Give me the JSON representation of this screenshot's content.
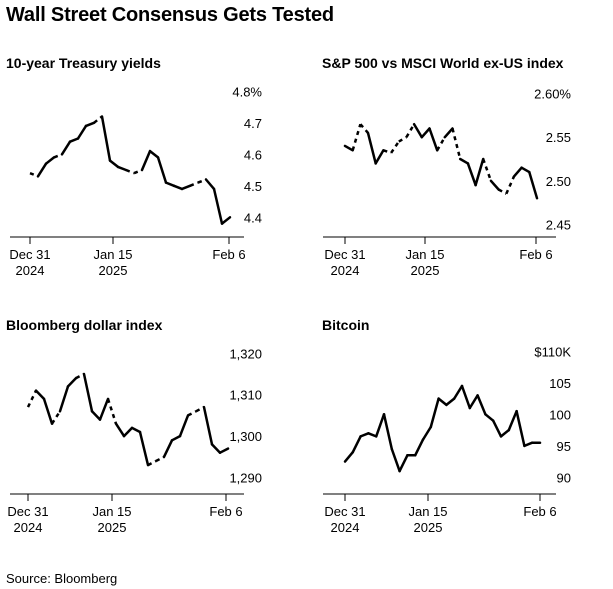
{
  "title": "Wall Street Consensus Gets Tested",
  "source": "Source: Bloomberg",
  "chart_data": [
    {
      "type": "line",
      "title": "10-year Treasury yields",
      "x_tick_labels": [
        [
          "Dec 31",
          "2024"
        ],
        [
          "Jan 15",
          "2025"
        ],
        [
          "Feb 6"
        ]
      ],
      "x_tick_index": [
        0,
        10,
        25
      ],
      "ylim": [
        4.35,
        4.82
      ],
      "y_ticks": [
        4.8,
        4.7,
        4.6,
        4.5,
        4.4
      ],
      "y_tick_labels": [
        "4.8%",
        "4.7",
        "4.6",
        "4.5",
        "4.4"
      ],
      "values": [
        4.54,
        4.53,
        4.57,
        4.59,
        4.6,
        4.64,
        4.65,
        4.69,
        4.7,
        4.72,
        4.58,
        4.56,
        4.55,
        4.54,
        4.55,
        4.61,
        4.59,
        4.51,
        4.5,
        4.49,
        4.5,
        4.51,
        4.52,
        4.49,
        4.38,
        4.4
      ],
      "gap_segments": [
        [
          0,
          1
        ],
        [
          3,
          4
        ],
        [
          8,
          9
        ],
        [
          12,
          13
        ],
        [
          13,
          14
        ],
        [
          20,
          21
        ],
        [
          21,
          22
        ]
      ]
    },
    {
      "type": "line",
      "title": "S&P 500 vs MSCI World ex-US index",
      "x_tick_labels": [
        [
          "Dec 31",
          "2024"
        ],
        [
          "Jan 15",
          "2025"
        ],
        [
          "Feb 6"
        ]
      ],
      "x_tick_index": [
        0,
        10,
        25
      ],
      "ylim": [
        2.44,
        2.61
      ],
      "y_ticks": [
        2.6,
        2.55,
        2.5,
        2.45
      ],
      "y_tick_labels": [
        "2.60%",
        "2.55",
        "2.50",
        "2.45"
      ],
      "values": [
        2.54,
        2.535,
        2.565,
        2.555,
        2.52,
        2.535,
        2.532,
        2.545,
        2.55,
        2.565,
        2.55,
        2.56,
        2.535,
        2.55,
        2.56,
        2.525,
        2.52,
        2.495,
        2.525,
        2.5,
        2.49,
        2.485,
        2.505,
        2.515,
        2.51,
        2.48
      ],
      "gap_segments": [
        [
          1,
          2
        ],
        [
          2,
          3
        ],
        [
          5,
          6
        ],
        [
          6,
          7
        ],
        [
          7,
          8
        ],
        [
          8,
          9
        ],
        [
          12,
          13
        ],
        [
          14,
          15
        ],
        [
          18,
          19
        ],
        [
          20,
          21
        ],
        [
          21,
          22
        ]
      ]
    },
    {
      "type": "line",
      "title": "Bloomberg dollar index",
      "x_tick_labels": [
        [
          "Dec 31",
          "2024"
        ],
        [
          "Jan 15",
          "2025"
        ],
        [
          "Feb 6"
        ]
      ],
      "x_tick_index": [
        0,
        10,
        25
      ],
      "ylim": [
        1287,
        1322
      ],
      "y_ticks": [
        1320,
        1310,
        1300,
        1290
      ],
      "y_tick_labels": [
        "1,320",
        "1,310",
        "1,300",
        "1,290"
      ],
      "values": [
        1307,
        1311,
        1309,
        1303,
        1306,
        1312,
        1314,
        1315,
        1306,
        1304,
        1309,
        1303,
        1300,
        1302,
        1301,
        1293,
        1294,
        1295,
        1299,
        1300,
        1305,
        1306,
        1307,
        1298,
        1296,
        1297
      ],
      "gap_segments": [
        [
          0,
          1
        ],
        [
          3,
          4
        ],
        [
          6,
          7
        ],
        [
          10,
          11
        ],
        [
          15,
          16
        ],
        [
          16,
          17
        ],
        [
          20,
          21
        ],
        [
          21,
          22
        ]
      ]
    },
    {
      "type": "line",
      "title": "Bitcoin",
      "x_tick_labels": [
        [
          "Dec 31",
          "2024"
        ],
        [
          "Jan 15",
          "2025"
        ],
        [
          "Feb 6"
        ]
      ],
      "x_tick_index": [
        0,
        10,
        25
      ],
      "ylim": [
        88,
        111
      ],
      "y_ticks": [
        110,
        105,
        100,
        95,
        90
      ],
      "y_tick_labels": [
        "$110K",
        "105",
        "100",
        "95",
        "90"
      ],
      "values": [
        92.5,
        94,
        96.5,
        97,
        96.5,
        100,
        94.5,
        91,
        93.5,
        93.5,
        96,
        98,
        102.5,
        101.5,
        102.5,
        104.5,
        101,
        103,
        100,
        99,
        96.5,
        97.5,
        100.5,
        95,
        95.5,
        95.5
      ],
      "gap_segments": []
    }
  ]
}
